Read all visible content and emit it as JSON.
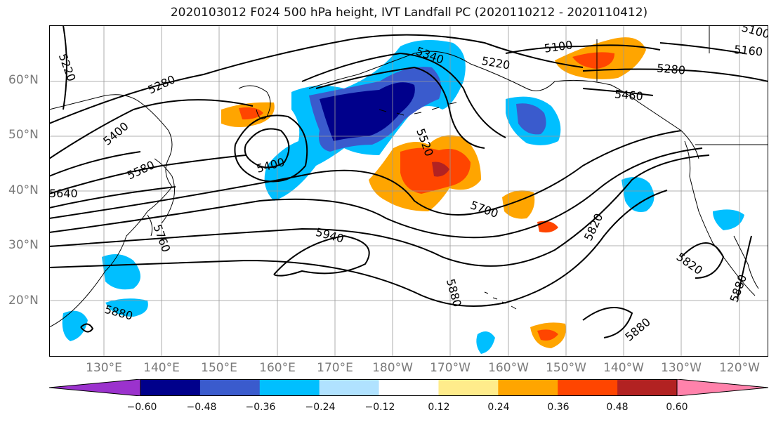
{
  "title": "2020103012 F024 500 hPa height, IVT Landfall PC (2020110212 - 2020110412)",
  "latitude_labels": [
    "60°N",
    "50°N",
    "40°N",
    "30°N",
    "20°N"
  ],
  "longitude_labels": [
    "130°E",
    "140°E",
    "150°E",
    "160°E",
    "170°E",
    "180°W",
    "170°W",
    "160°W",
    "150°W",
    "140°W",
    "130°W",
    "120°W"
  ],
  "contour_labels": [
    "5220",
    "5280",
    "5400",
    "5580",
    "5640",
    "5760",
    "5340",
    "5220",
    "5100",
    "5160",
    "5280",
    "5100",
    "5400",
    "5520",
    "5700",
    "5940",
    "5880",
    "5820",
    "5820",
    "5880",
    "5880",
    "5880",
    "5460"
  ],
  "colorbar": {
    "ticks": [
      "−0.60",
      "−0.48",
      "−0.36",
      "−0.24",
      "−0.12",
      "0.12",
      "0.24",
      "0.36",
      "0.48",
      "0.60"
    ],
    "colors": [
      "#9b32cd",
      "#00008b",
      "#3a5bcd",
      "#00bfff",
      "#b0e2ff",
      "#ffffff",
      "#ffec8b",
      "#ffa500",
      "#ff4500",
      "#b22222",
      "#ff82ab"
    ]
  }
}
